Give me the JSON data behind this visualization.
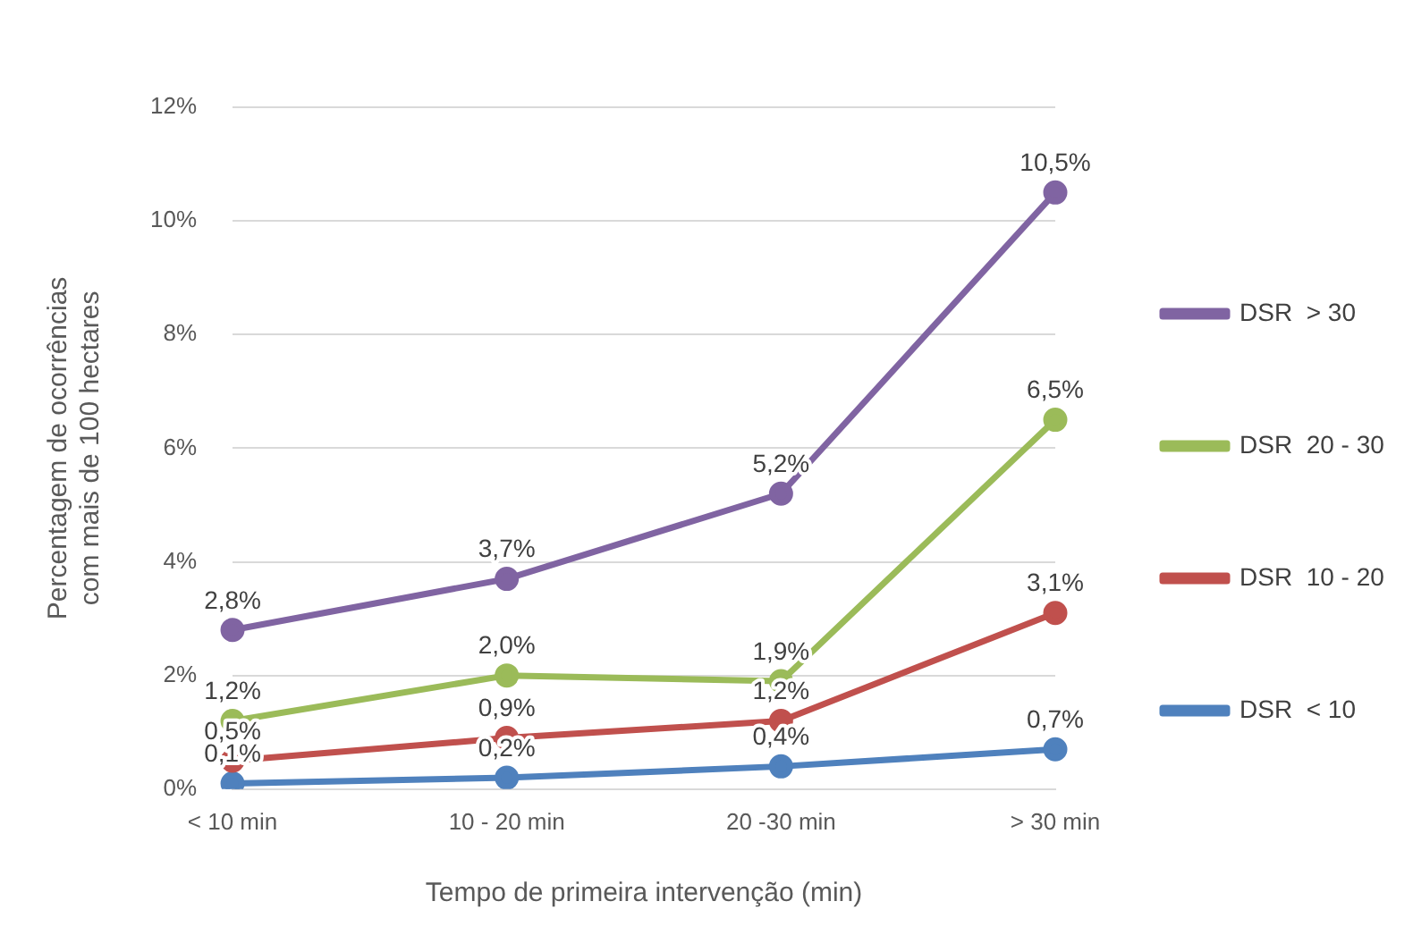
{
  "chart_data": {
    "type": "line",
    "xlabel": "Tempo de primeira intervenção (min)",
    "ylabel": "Percentagem de ocorrências com mais de 100 hectares",
    "categories": [
      "< 10 min",
      "10 - 20 min",
      "20 -30 min",
      "> 30 min"
    ],
    "series": [
      {
        "name": "DSR  > 30",
        "color": "#8064a2",
        "values": [
          2.8,
          3.7,
          5.2,
          10.5
        ],
        "value_labels": [
          "2,8%",
          "3,7%",
          "5,2%",
          "10,5%"
        ]
      },
      {
        "name": "DSR  20 - 30",
        "color": "#9bbb59",
        "values": [
          1.2,
          2.0,
          1.9,
          6.5
        ],
        "value_labels": [
          "1,2%",
          "2,0%",
          "1,9%",
          "6,5%"
        ]
      },
      {
        "name": "DSR  10 - 20",
        "color": "#c0504d",
        "values": [
          0.5,
          0.9,
          1.2,
          3.1
        ],
        "value_labels": [
          "0,5%",
          "0,9%",
          "1,2%",
          "3,1%"
        ]
      },
      {
        "name": "DSR  < 10",
        "color": "#4f81bd",
        "values": [
          0.1,
          0.2,
          0.4,
          0.7
        ],
        "value_labels": [
          "0,1%",
          "0,2%",
          "0,4%",
          "0,7%"
        ]
      }
    ],
    "ylim": [
      0,
      12
    ],
    "yticks": [
      {
        "value": 0,
        "label": "0%"
      },
      {
        "value": 2,
        "label": "2%"
      },
      {
        "value": 4,
        "label": "4%"
      },
      {
        "value": 6,
        "label": "6%"
      },
      {
        "value": 8,
        "label": "8%"
      },
      {
        "value": 10,
        "label": "10%"
      },
      {
        "value": 12,
        "label": "12%"
      }
    ],
    "grid": "y",
    "legend": "right",
    "marker": "circle",
    "line_style": "solid"
  }
}
